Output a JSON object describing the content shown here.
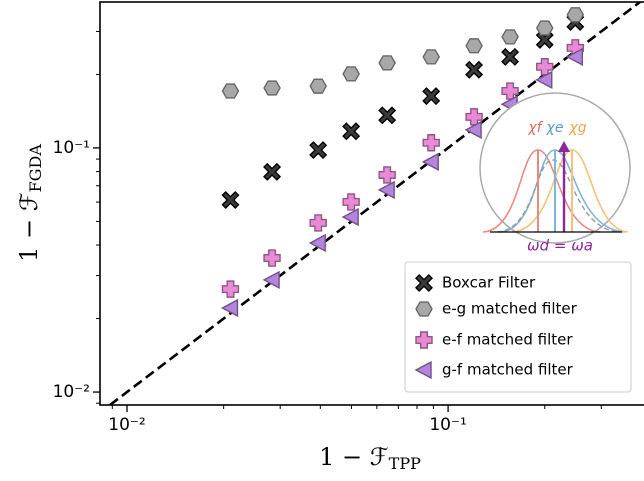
{
  "chart_data": {
    "type": "scatter",
    "xlabel": "1 − ℱ",
    "xlabel_sub": "TPP",
    "ylabel": "1 − ℱ",
    "ylabel_sub": "FGDA",
    "log_x": true,
    "log_y": true,
    "legend": "lower right",
    "xlim": [
      0.00824,
      0.396
    ],
    "ylim": [
      0.00885,
      0.396
    ],
    "xticks": [
      {
        "value": 0.01,
        "label": "10⁻²"
      },
      {
        "value": 0.1,
        "label": "10⁻¹"
      }
    ],
    "yticks": [
      {
        "value": 0.01,
        "label": "10⁻²"
      },
      {
        "value": 0.1,
        "label": "10⁻¹"
      }
    ],
    "series": [
      {
        "name": "Boxcar Filter",
        "marker": "x",
        "color": "#3a3a3a",
        "x": [
          0.021,
          0.0283,
          0.0394,
          0.0499,
          0.0646,
          0.0886,
          0.1205,
          0.156,
          0.2,
          0.249
        ],
        "values": [
          0.0612,
          0.0798,
          0.098,
          0.117,
          0.136,
          0.163,
          0.209,
          0.236,
          0.277,
          0.328
        ]
      },
      {
        "name": "e-g matched filter",
        "marker": "hexagon",
        "color": "#a8a8a8",
        "x": [
          0.021,
          0.0283,
          0.0394,
          0.0499,
          0.0646,
          0.0886,
          0.1205,
          0.156,
          0.2,
          0.249
        ],
        "values": [
          0.171,
          0.176,
          0.179,
          0.201,
          0.223,
          0.236,
          0.262,
          0.285,
          0.31,
          0.351
        ]
      },
      {
        "name": "e-f matched filter",
        "marker": "plus",
        "color": "#e98ad6",
        "x": [
          0.021,
          0.0283,
          0.0394,
          0.0499,
          0.0646,
          0.0886,
          0.1205,
          0.156,
          0.2,
          0.249
        ],
        "values": [
          0.0264,
          0.0354,
          0.0493,
          0.0601,
          0.0775,
          0.105,
          0.134,
          0.171,
          0.215,
          0.257
        ]
      },
      {
        "name": "g-f matched filter",
        "marker": "triangle-left",
        "color": "#b584dc",
        "x": [
          0.021,
          0.0283,
          0.0394,
          0.0499,
          0.0646,
          0.0886,
          0.1205,
          0.156,
          0.2,
          0.249
        ],
        "values": [
          0.0221,
          0.0288,
          0.0408,
          0.0521,
          0.0673,
          0.0877,
          0.1186,
          0.151,
          0.19,
          0.236
        ]
      }
    ],
    "inset": {
      "labels": [
        "χf",
        "χe",
        "χg"
      ],
      "caption": "ωd = ωa"
    }
  }
}
